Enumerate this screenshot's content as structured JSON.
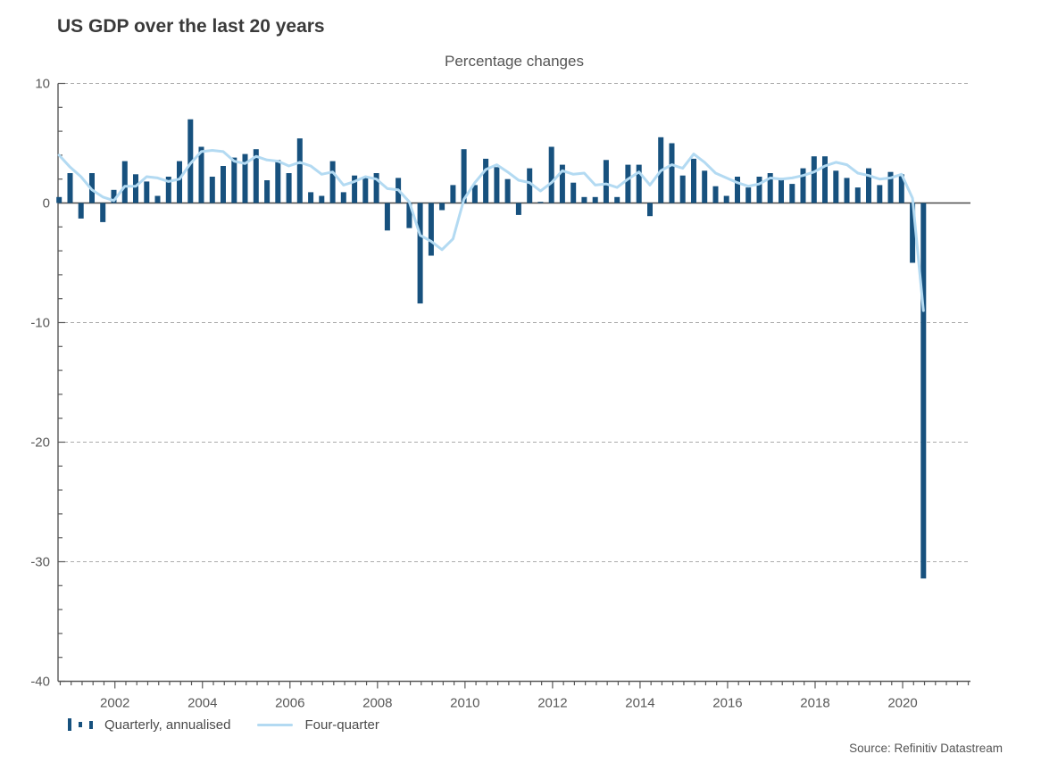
{
  "page": {
    "title": "US GDP over the last 20 years",
    "subtitle": "Percentage changes",
    "source": "Source: Refinitiv Datastream"
  },
  "legend": [
    {
      "label": "Quarterly, annualised",
      "marker": "bars",
      "color": "#17517e"
    },
    {
      "label": "Four-quarter",
      "marker": "line",
      "color": "#b3daf2"
    }
  ],
  "colors": {
    "bar": "#17517e",
    "line": "#b3daf2",
    "gridline": "#ababab",
    "axis": "#595959",
    "zero_line": "#4a4a4a",
    "title_text": "#3a3a3a",
    "label_text": "#595959"
  },
  "chart_data": {
    "type": "bar",
    "subtype": "bar+line combo, quarterly time series",
    "title": "US GDP over the last 20 years",
    "subtitle": "Percentage changes",
    "xlabel": "",
    "ylabel": "",
    "ylim": [
      -40,
      10
    ],
    "y_ticks": [
      10,
      0,
      -10,
      -20,
      -30,
      -40
    ],
    "grid": "horizontal dashed at 10, -10, -20, -30; solid zero line",
    "legend_position": "bottom-left",
    "x_start": "2000 Q3",
    "x_end": "2020 Q2",
    "x_frequency": "quarterly",
    "x_tick_labels": [
      "2002",
      "2004",
      "2006",
      "2008",
      "2010",
      "2012",
      "2014",
      "2016",
      "2018",
      "2020"
    ],
    "x": [
      "2000Q3",
      "2000Q4",
      "2001Q1",
      "2001Q2",
      "2001Q3",
      "2001Q4",
      "2002Q1",
      "2002Q2",
      "2002Q3",
      "2002Q4",
      "2003Q1",
      "2003Q2",
      "2003Q3",
      "2003Q4",
      "2004Q1",
      "2004Q2",
      "2004Q3",
      "2004Q4",
      "2005Q1",
      "2005Q2",
      "2005Q3",
      "2005Q4",
      "2006Q1",
      "2006Q2",
      "2006Q3",
      "2006Q4",
      "2007Q1",
      "2007Q2",
      "2007Q3",
      "2007Q4",
      "2008Q1",
      "2008Q2",
      "2008Q3",
      "2008Q4",
      "2009Q1",
      "2009Q2",
      "2009Q3",
      "2009Q4",
      "2010Q1",
      "2010Q2",
      "2010Q3",
      "2010Q4",
      "2011Q1",
      "2011Q2",
      "2011Q3",
      "2011Q4",
      "2012Q1",
      "2012Q2",
      "2012Q3",
      "2012Q4",
      "2013Q1",
      "2013Q2",
      "2013Q3",
      "2013Q4",
      "2014Q1",
      "2014Q2",
      "2014Q3",
      "2014Q4",
      "2015Q1",
      "2015Q2",
      "2015Q3",
      "2015Q4",
      "2016Q1",
      "2016Q2",
      "2016Q3",
      "2016Q4",
      "2017Q1",
      "2017Q2",
      "2017Q3",
      "2017Q4",
      "2018Q1",
      "2018Q2",
      "2018Q3",
      "2018Q4",
      "2019Q1",
      "2019Q2",
      "2019Q3",
      "2019Q4",
      "2020Q1",
      "2020Q2"
    ],
    "series": [
      {
        "name": "Quarterly, annualised",
        "type": "bar",
        "color": "#17517e",
        "values": [
          0.5,
          2.5,
          -1.3,
          2.5,
          -1.6,
          1.1,
          3.5,
          2.4,
          1.8,
          0.6,
          2.2,
          3.5,
          7.0,
          4.7,
          2.2,
          3.1,
          3.8,
          4.1,
          4.5,
          1.9,
          3.6,
          2.5,
          5.4,
          0.9,
          0.6,
          3.5,
          0.9,
          2.3,
          2.2,
          2.5,
          -2.3,
          2.1,
          -2.1,
          -8.4,
          -4.4,
          -0.6,
          1.5,
          4.5,
          1.5,
          3.7,
          3.0,
          2.0,
          -1.0,
          2.9,
          0.1,
          4.7,
          3.2,
          1.7,
          0.5,
          0.5,
          3.6,
          0.5,
          3.2,
          3.2,
          -1.1,
          5.5,
          5.0,
          2.3,
          3.7,
          2.7,
          1.4,
          0.6,
          2.2,
          1.3,
          2.2,
          2.5,
          2.1,
          1.6,
          2.9,
          3.9,
          3.9,
          2.7,
          2.1,
          1.3,
          2.9,
          1.5,
          2.6,
          2.4,
          -5.0,
          -31.4
        ]
      },
      {
        "name": "Four-quarter",
        "type": "line",
        "color": "#b3daf2",
        "values": [
          4.0,
          3.0,
          2.2,
          1.1,
          0.5,
          0.2,
          1.4,
          1.4,
          2.2,
          2.1,
          1.8,
          2.0,
          3.3,
          4.3,
          4.4,
          4.3,
          3.5,
          3.3,
          3.9,
          3.6,
          3.5,
          3.1,
          3.4,
          3.1,
          2.4,
          2.6,
          1.5,
          1.8,
          2.2,
          2.0,
          1.2,
          1.1,
          0.1,
          -2.7,
          -3.2,
          -3.9,
          -3.0,
          0.3,
          1.7,
          2.8,
          3.2,
          2.6,
          1.9,
          1.7,
          1.0,
          1.7,
          2.7,
          2.4,
          2.5,
          1.5,
          1.6,
          1.3,
          2.0,
          2.6,
          1.5,
          2.7,
          3.2,
          2.9,
          4.1,
          3.4,
          2.5,
          2.1,
          1.7,
          1.4,
          1.6,
          2.1,
          2.0,
          2.1,
          2.3,
          2.6,
          3.1,
          3.4,
          3.2,
          2.5,
          2.3,
          2.0,
          2.1,
          2.4,
          0.4,
          -9.0
        ]
      }
    ]
  }
}
